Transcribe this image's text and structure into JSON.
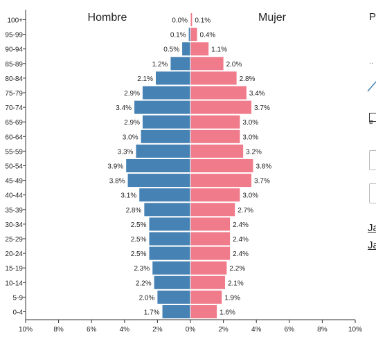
{
  "chart_data": {
    "type": "bar",
    "subtype": "population-pyramid",
    "left_title": "Hombre",
    "right_title": "Mujer",
    "categories": [
      "100+",
      "95-99",
      "90-94",
      "85-89",
      "80-84",
      "75-79",
      "70-74",
      "65-69",
      "60-64",
      "55-59",
      "50-54",
      "45-49",
      "40-44",
      "35-39",
      "30-34",
      "25-29",
      "20-24",
      "15-19",
      "10-14",
      "5-9",
      "0-4"
    ],
    "series": [
      {
        "name": "Hombre",
        "color": "#4682b4",
        "values": [
          0.0,
          0.1,
          0.5,
          1.2,
          2.1,
          2.9,
          3.4,
          2.9,
          3.0,
          3.3,
          3.9,
          3.8,
          3.1,
          2.8,
          2.5,
          2.5,
          2.5,
          2.3,
          2.2,
          2.0,
          1.7
        ],
        "labels": [
          "0.0%",
          "0.1%",
          "0.5%",
          "1.2%",
          "2.1%",
          "2.9%",
          "3.4%",
          "2.9%",
          "3.0%",
          "3.3%",
          "3.9%",
          "3.8%",
          "3.1%",
          "2.8%",
          "2.5%",
          "2.5%",
          "2.5%",
          "2.3%",
          "2.2%",
          "2.0%",
          "1.7%"
        ]
      },
      {
        "name": "Mujer",
        "color": "#f07b8b",
        "values": [
          0.1,
          0.4,
          1.1,
          2.0,
          2.8,
          3.4,
          3.7,
          3.0,
          3.0,
          3.2,
          3.8,
          3.7,
          3.0,
          2.7,
          2.4,
          2.4,
          2.4,
          2.2,
          2.1,
          1.9,
          1.6
        ],
        "labels": [
          "0.1%",
          "0.4%",
          "1.1%",
          "2.0%",
          "2.8%",
          "3.4%",
          "3.7%",
          "3.0%",
          "3.0%",
          "3.2%",
          "3.8%",
          "3.7%",
          "3.0%",
          "2.7%",
          "2.4%",
          "2.4%",
          "2.4%",
          "2.2%",
          "2.1%",
          "1.9%",
          "1.6%"
        ]
      }
    ],
    "x_ticks_left": [
      "10%",
      "8%",
      "6%",
      "4%",
      "2%",
      "0%"
    ],
    "x_ticks_right": [
      "0%",
      "2%",
      "4%",
      "6%",
      "8%",
      "10%"
    ],
    "xlim": [
      0,
      10
    ],
    "grid": false,
    "legend": "none"
  },
  "side_panel": {
    "heading_fragment": "Po",
    "link_1": "Ja",
    "link_2": "Ja"
  }
}
